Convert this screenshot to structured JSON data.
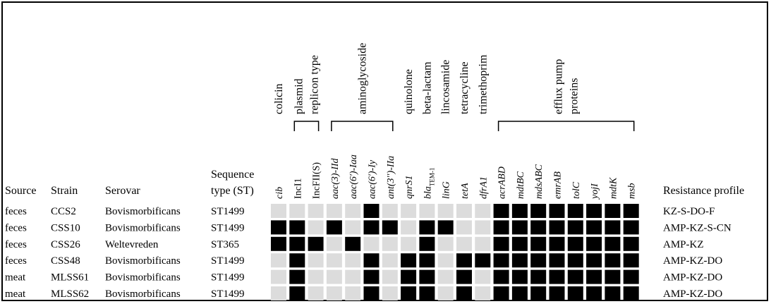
{
  "chart_data": {
    "type": "heatmap",
    "columns_left": [
      "Source",
      "Strain",
      "Serovar",
      "Sequence type (ST)"
    ],
    "column_right": "Resistance profile",
    "sequence_type_header": [
      "Sequence",
      "type (ST)"
    ],
    "categories": [
      {
        "label": [
          "colicin"
        ],
        "genes": [
          0
        ]
      },
      {
        "label": [
          "plasmid",
          "replicon type"
        ],
        "genes": [
          1,
          2
        ]
      },
      {
        "label": [
          "aminoglycoside"
        ],
        "genes": [
          3,
          4,
          5,
          6
        ]
      },
      {
        "label": [
          "quinolone"
        ],
        "genes": [
          7
        ]
      },
      {
        "label": [
          "beta-lactam"
        ],
        "genes": [
          8
        ]
      },
      {
        "label": [
          "lincosamide"
        ],
        "genes": [
          9
        ]
      },
      {
        "label": [
          "tetracycline"
        ],
        "genes": [
          10
        ]
      },
      {
        "label": [
          "trimethoprim"
        ],
        "genes": [
          11
        ]
      },
      {
        "label": [
          "efflux pump",
          "proteins"
        ],
        "genes": [
          12,
          13,
          14,
          15,
          16,
          17,
          18,
          19
        ]
      }
    ],
    "genes": [
      {
        "name": "cib",
        "italic": true
      },
      {
        "name": "IncI1",
        "italic": false
      },
      {
        "name": "IncFII(S)",
        "italic": false
      },
      {
        "name": "aac(3)-IId",
        "italic": true
      },
      {
        "name": "aac(6')-Iaa",
        "italic": true
      },
      {
        "name": "aac(6')-Iy",
        "italic": true
      },
      {
        "name": "ant(3'')-IIa",
        "italic": true
      },
      {
        "name": "qnrS1",
        "italic": true
      },
      {
        "name": "bla",
        "italic": true,
        "subscript": "TEM-1"
      },
      {
        "name": "linG",
        "italic": true
      },
      {
        "name": "tetA",
        "italic": true
      },
      {
        "name": "dfrA1",
        "italic": true
      },
      {
        "name": "acrABD",
        "italic": true
      },
      {
        "name": "mdtBC",
        "italic": true
      },
      {
        "name": "mdsABC",
        "italic": true
      },
      {
        "name": "emrAB",
        "italic": true
      },
      {
        "name": "tolC",
        "italic": true
      },
      {
        "name": "yojI",
        "italic": true
      },
      {
        "name": "mdtK",
        "italic": true
      },
      {
        "name": "msb",
        "italic": true
      }
    ],
    "rows": [
      {
        "source": "feces",
        "strain": "CCS2",
        "serovar": "Bovismorbificans",
        "st": "ST1499",
        "profile": "KZ-S-DO-F",
        "values": [
          0,
          0,
          0,
          0,
          0,
          1,
          0,
          0,
          0,
          0,
          0,
          0,
          1,
          1,
          1,
          1,
          1,
          1,
          1,
          1
        ]
      },
      {
        "source": "feces",
        "strain": "CSS10",
        "serovar": "Bovismorbificans",
        "st": "ST1499",
        "profile": "AMP-KZ-S-CN",
        "values": [
          1,
          1,
          0,
          1,
          0,
          1,
          1,
          0,
          1,
          1,
          0,
          0,
          1,
          1,
          1,
          1,
          1,
          1,
          1,
          1
        ]
      },
      {
        "source": "feces",
        "strain": "CSS26",
        "serovar": "Weltevreden",
        "st": "ST365",
        "profile": "AMP-KZ",
        "values": [
          1,
          1,
          1,
          0,
          1,
          0,
          0,
          0,
          1,
          0,
          0,
          0,
          1,
          1,
          1,
          1,
          1,
          1,
          1,
          1
        ]
      },
      {
        "source": "feces",
        "strain": "CSS48",
        "serovar": "Bovismorbificans",
        "st": "ST1499",
        "profile": "AMP-KZ-DO",
        "values": [
          0,
          1,
          0,
          0,
          0,
          1,
          0,
          1,
          1,
          0,
          1,
          1,
          1,
          1,
          1,
          1,
          1,
          1,
          1,
          1
        ]
      },
      {
        "source": "meat",
        "strain": "MLSS61",
        "serovar": "Bovismorbificans",
        "st": "ST1499",
        "profile": "AMP-KZ-DO",
        "values": [
          0,
          1,
          0,
          0,
          0,
          1,
          0,
          1,
          1,
          0,
          1,
          0,
          1,
          1,
          1,
          1,
          1,
          1,
          1,
          1
        ]
      },
      {
        "source": "meat",
        "strain": "MLSS62",
        "serovar": "Bovismorbificans",
        "st": "ST1499",
        "profile": "AMP-KZ-DO",
        "values": [
          0,
          1,
          0,
          0,
          0,
          1,
          0,
          1,
          1,
          0,
          1,
          0,
          1,
          1,
          1,
          1,
          1,
          1,
          1,
          1
        ]
      }
    ],
    "colors": {
      "present": "#000000",
      "absent": "#dcdcdc"
    }
  }
}
